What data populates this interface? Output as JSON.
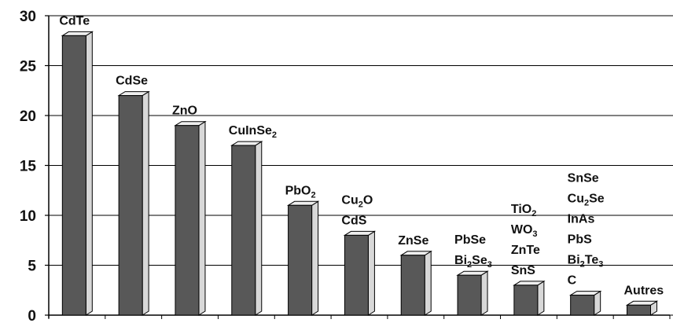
{
  "chart_data": {
    "type": "bar",
    "categories": [
      [
        "CdTe"
      ],
      [
        "CdSe"
      ],
      [
        "ZnO"
      ],
      [
        "CuInSe2"
      ],
      [
        "PbO2"
      ],
      [
        "Cu2O",
        "CdS"
      ],
      [
        "ZnSe"
      ],
      [
        "PbSe",
        "Bi2Se3"
      ],
      [
        "TiO2",
        "WO3",
        "ZnTe",
        "SnS"
      ],
      [
        "SnSe",
        "Cu2Se",
        "InAs",
        "PbS",
        "Bi2Te3",
        "C"
      ],
      [
        "Autres"
      ]
    ],
    "values": [
      28,
      22,
      19,
      17,
      11,
      8,
      6,
      4,
      3,
      2,
      1
    ],
    "color": "#585858",
    "ylim": [
      0,
      30
    ],
    "yticks": [
      0,
      5,
      10,
      15,
      20,
      25,
      30
    ],
    "grid": true
  }
}
